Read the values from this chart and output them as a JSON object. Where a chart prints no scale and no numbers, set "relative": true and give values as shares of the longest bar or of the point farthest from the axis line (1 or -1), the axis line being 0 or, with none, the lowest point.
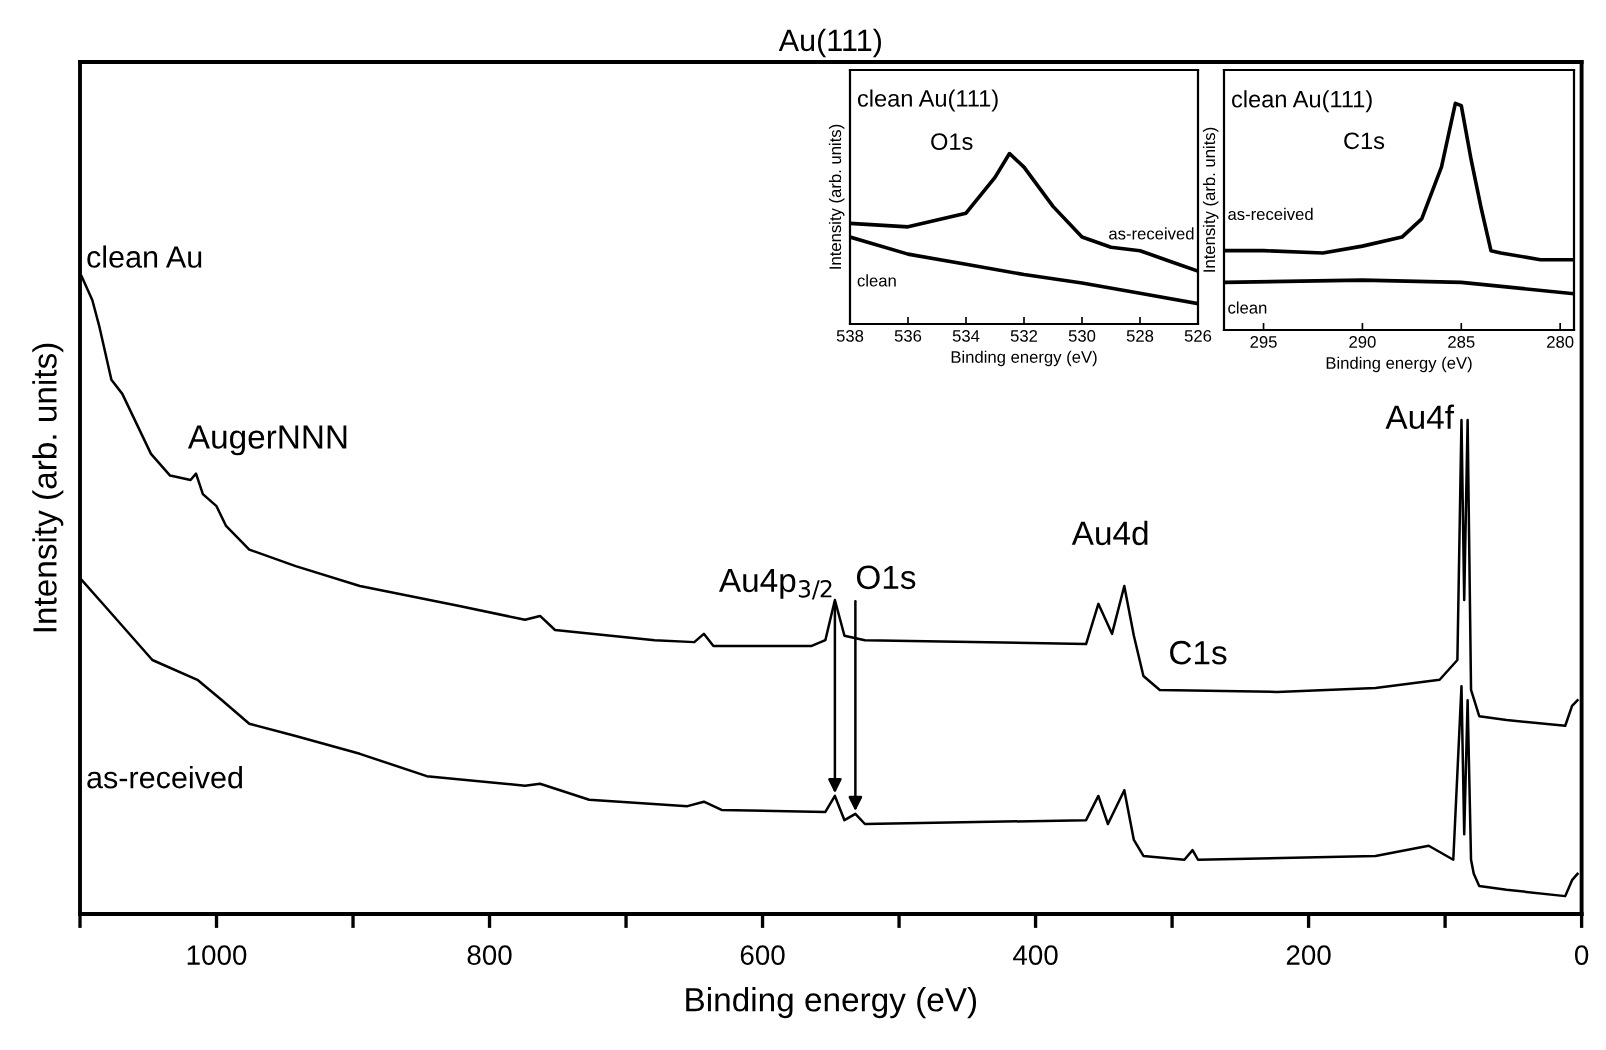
{
  "chart_data": [
    {
      "type": "line",
      "title": "Au(111)",
      "xlabel": "Binding energy (eV)",
      "ylabel": "Intensity (arb. units)",
      "relative": true,
      "legend": false,
      "xlim": [
        1100,
        0
      ],
      "xticks": [
        {
          "value": 1100,
          "label": null
        },
        1000,
        {
          "value": 900,
          "label": null
        },
        800,
        {
          "value": 700,
          "label": null
        },
        600,
        {
          "value": 500,
          "label": null
        },
        400,
        {
          "value": 300,
          "label": null
        },
        200,
        {
          "value": 100,
          "label": null
        },
        0
      ],
      "series": [
        {
          "name": "clean Au",
          "color": "#000000",
          "x": [
            1099,
            1091,
            1086,
            1077,
            1069,
            1048,
            1034,
            1019,
            1015,
            1010,
            1000,
            993,
            976,
            942,
            895,
            823,
            774,
            763,
            752,
            679,
            650,
            643,
            636,
            564,
            554,
            547,
            540,
            525,
            363,
            354,
            344,
            335,
            328,
            321,
            309,
            223,
            151,
            104,
            91,
            88,
            86,
            83.5,
            81,
            75,
            55,
            12,
            7,
            3
          ],
          "values": [
            1.0,
            0.962,
            0.922,
            0.837,
            0.815,
            0.721,
            0.687,
            0.68,
            0.69,
            0.658,
            0.639,
            0.608,
            0.571,
            0.545,
            0.514,
            0.483,
            0.461,
            0.467,
            0.445,
            0.429,
            0.426,
            0.439,
            0.42,
            0.42,
            0.429,
            0.492,
            0.436,
            0.429,
            0.423,
            0.486,
            0.439,
            0.514,
            0.436,
            0.373,
            0.351,
            0.348,
            0.354,
            0.367,
            0.398,
            0.774,
            0.492,
            0.774,
            0.351,
            0.31,
            0.304,
            0.295,
            0.326,
            0.335
          ]
        },
        {
          "name": "as-received",
          "color": "#000000",
          "x": [
            1099,
            1082,
            1047,
            1014,
            996,
            976,
            942,
            895,
            846,
            774,
            763,
            727,
            655,
            643,
            630,
            554,
            547,
            540,
            532,
            525,
            363,
            354,
            347,
            335,
            328,
            321,
            291,
            285,
            281,
            151,
            112,
            94,
            88,
            86,
            83.5,
            81,
            79,
            75,
            55,
            12,
            7,
            3
          ],
          "values": [
            0.524,
            0.483,
            0.398,
            0.367,
            0.335,
            0.298,
            0.279,
            0.251,
            0.216,
            0.201,
            0.204,
            0.179,
            0.169,
            0.176,
            0.163,
            0.16,
            0.185,
            0.147,
            0.157,
            0.141,
            0.147,
            0.185,
            0.141,
            0.194,
            0.116,
            0.091,
            0.085,
            0.1,
            0.085,
            0.091,
            0.107,
            0.085,
            0.357,
            0.125,
            0.335,
            0.085,
            0.063,
            0.044,
            0.038,
            0.028,
            0.053,
            0.063
          ]
        }
      ],
      "annotations": [
        {
          "text": "AugerNNN",
          "x": 1014,
          "y": 0.69
        },
        {
          "text": "Au4p$_{3/2}$",
          "x": 547,
          "y": 0.185
        },
        {
          "text": "O1s",
          "x": 532,
          "y": 0.157
        },
        {
          "text": "Au4d",
          "x": 335,
          "y": 0.514
        },
        {
          "text": "C1s",
          "x": 285,
          "y": 0.35
        },
        {
          "text": "Au4f",
          "x": 84,
          "y": 0.774
        }
      ]
    },
    {
      "type": "line",
      "xlabel": "Binding energy (eV)",
      "ylabel": "Intensity (arb. units)",
      "relative": true,
      "legend": false,
      "xlim": [
        538,
        526
      ],
      "xticks": [
        538,
        536,
        534,
        532,
        530,
        528,
        526
      ],
      "series": [
        {
          "name": "as-received",
          "color": "#000000",
          "x": [
            538,
            536,
            534,
            533,
            532.5,
            532,
            531,
            530,
            529,
            528,
            527,
            526
          ],
          "values": [
            0.59,
            0.57,
            0.65,
            0.86,
            1.0,
            0.92,
            0.69,
            0.51,
            0.45,
            0.43,
            0.37,
            0.31
          ]
        },
        {
          "name": "clean",
          "color": "#000000",
          "x": [
            538,
            536,
            534,
            532,
            530,
            528,
            526
          ],
          "values": [
            0.51,
            0.41,
            0.35,
            0.29,
            0.24,
            0.18,
            0.12
          ]
        }
      ],
      "annotations": [
        "clean Au(111)",
        "O1s"
      ]
    },
    {
      "type": "line",
      "xlabel": "Binding energy (eV)",
      "ylabel": "Intensity (arb. units)",
      "relative": true,
      "legend": false,
      "xlim": [
        297,
        279.3
      ],
      "xticks": [
        295,
        290,
        285,
        280
      ],
      "series": [
        {
          "name": "as-received",
          "color": "#000000",
          "x": [
            297,
            295,
            292,
            290,
            288,
            287,
            286,
            285.3,
            285,
            284.5,
            284,
            283.5,
            283,
            281,
            279.3
          ],
          "values": [
            0.35,
            0.35,
            0.34,
            0.37,
            0.41,
            0.49,
            0.72,
            1.0,
            0.99,
            0.75,
            0.54,
            0.35,
            0.34,
            0.31,
            0.31
          ]
        },
        {
          "name": "clean",
          "color": "#000000",
          "x": [
            297,
            290,
            285,
            279.3
          ],
          "values": [
            0.21,
            0.22,
            0.21,
            0.16
          ]
        }
      ],
      "annotations": [
        "clean Au(111)",
        "C1s"
      ]
    }
  ]
}
